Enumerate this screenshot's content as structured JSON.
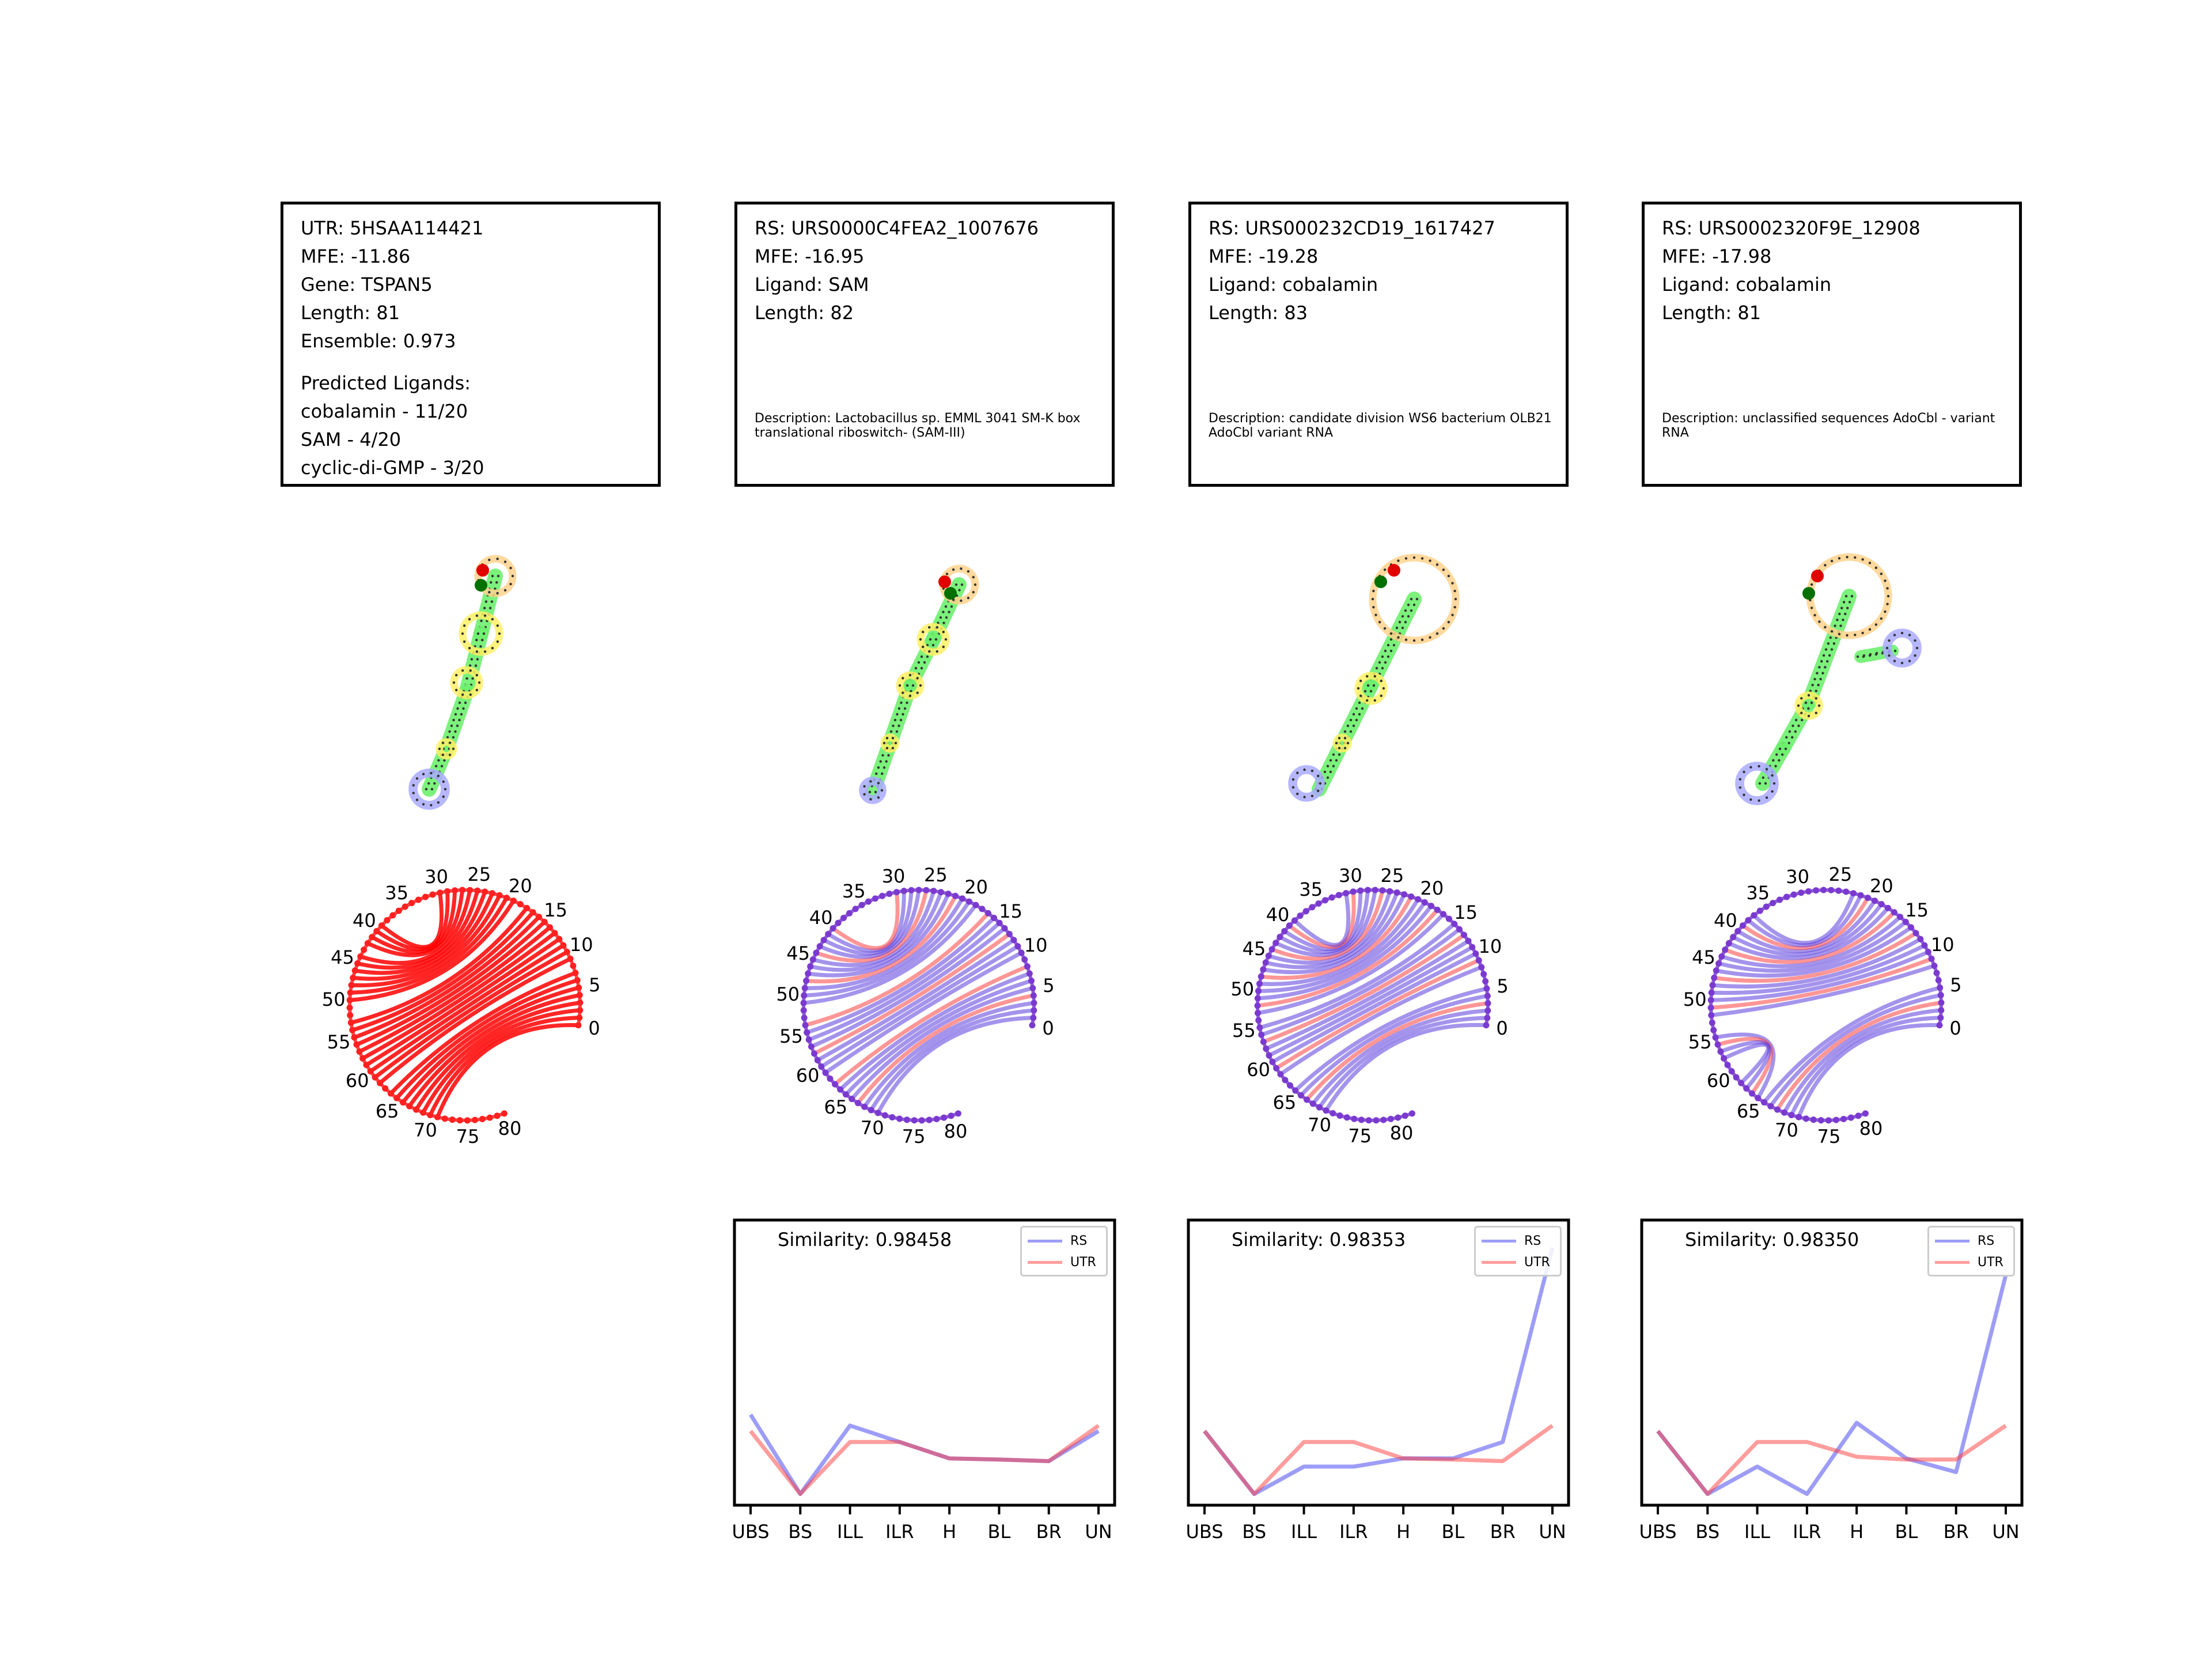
{
  "colors": {
    "rs": "#0000ff",
    "utr": "#ff0000",
    "stem": "#6ef06e",
    "hairpin": "#ffd28c",
    "interior": "#fff066",
    "exterior": "#aaaaff"
  },
  "panels": [
    {
      "lines": [
        "UTR: 5HSAA114421",
        "MFE: -11.86",
        "Gene: TSPAN5",
        "Length: 81",
        "Ensemble: 0.973",
        "Predicted Ligands:",
        "cobalamin - 11/20",
        "SAM - 4/20",
        "cyclic-di-GMP - 3/20"
      ],
      "description": ""
    },
    {
      "lines": [
        "RS: URS0000C4FEA2_1007676",
        "MFE: -16.95",
        "Ligand: SAM",
        "Length: 82"
      ],
      "description": "Description: Lactobacillus sp. EMML 3041 SM-K box translational riboswitch- (SAM-III)"
    },
    {
      "lines": [
        "RS: URS000232CD19_1617427",
        "MFE: -19.28",
        "Ligand: cobalamin",
        "Length: 83"
      ],
      "description": "Description: candidate division WS6 bacterium OLB21 AdoCbl variant RNA"
    },
    {
      "lines": [
        "RS: URS0002320F9E_12908",
        "MFE: -17.98",
        "Ligand: cobalamin",
        "Length: 81"
      ],
      "description": "Description: unclassified sequences AdoCbl - variant RNA"
    }
  ],
  "arc_diagrams": [
    {
      "length": 81,
      "labels": [
        "0",
        "5",
        "10",
        "15",
        "20",
        "25",
        "30",
        "35",
        "40",
        "45",
        "50",
        "55",
        "60",
        "65",
        "70",
        "75",
        "80"
      ],
      "pairs": [
        [
          0,
          71
        ],
        [
          1,
          70
        ],
        [
          2,
          69
        ],
        [
          3,
          68
        ],
        [
          4,
          67
        ],
        [
          5,
          66
        ],
        [
          6,
          65
        ],
        [
          7,
          64
        ],
        [
          9,
          62
        ],
        [
          10,
          61
        ],
        [
          11,
          60
        ],
        [
          12,
          59
        ],
        [
          13,
          58
        ],
        [
          14,
          57
        ],
        [
          15,
          56
        ],
        [
          16,
          55
        ],
        [
          17,
          54
        ],
        [
          18,
          53
        ],
        [
          20,
          50
        ],
        [
          21,
          49
        ],
        [
          22,
          48
        ],
        [
          23,
          47
        ],
        [
          24,
          46
        ],
        [
          25,
          45
        ],
        [
          26,
          44
        ],
        [
          27,
          42
        ],
        [
          28,
          41
        ],
        [
          29,
          40
        ],
        [
          30,
          39
        ]
      ]
    },
    {
      "length": 82,
      "labels": [
        "0",
        "5",
        "10",
        "15",
        "20",
        "25",
        "30",
        "35",
        "40",
        "45",
        "50",
        "55",
        "60",
        "65",
        "70",
        "75",
        "80"
      ],
      "pairs": [
        [
          1,
          70
        ],
        [
          2,
          69
        ],
        [
          3,
          68
        ],
        [
          4,
          67
        ],
        [
          5,
          66
        ],
        [
          6,
          65
        ],
        [
          7,
          64
        ],
        [
          8,
          63
        ],
        [
          10,
          61
        ],
        [
          11,
          60
        ],
        [
          12,
          59
        ],
        [
          13,
          58
        ],
        [
          14,
          57
        ],
        [
          15,
          56
        ],
        [
          16,
          55
        ],
        [
          17,
          54
        ],
        [
          19,
          51
        ],
        [
          20,
          50
        ],
        [
          21,
          49
        ],
        [
          22,
          48
        ],
        [
          23,
          47
        ],
        [
          24,
          46
        ],
        [
          25,
          45
        ],
        [
          26,
          44
        ],
        [
          27,
          43
        ],
        [
          28,
          42
        ],
        [
          29,
          41
        ],
        [
          30,
          40
        ]
      ]
    },
    {
      "length": 83,
      "labels": [
        "0",
        "5",
        "10",
        "15",
        "20",
        "25",
        "30",
        "35",
        "40",
        "45",
        "50",
        "55",
        "60",
        "65",
        "70",
        "75",
        "80"
      ],
      "pairs": [
        [
          0,
          70
        ],
        [
          1,
          69
        ],
        [
          2,
          68
        ],
        [
          3,
          67
        ],
        [
          4,
          66
        ],
        [
          5,
          65
        ],
        [
          8,
          62
        ],
        [
          9,
          61
        ],
        [
          10,
          60
        ],
        [
          11,
          59
        ],
        [
          12,
          58
        ],
        [
          13,
          57
        ],
        [
          14,
          56
        ],
        [
          15,
          55
        ],
        [
          17,
          53
        ],
        [
          18,
          52
        ],
        [
          19,
          51
        ],
        [
          20,
          50
        ],
        [
          21,
          49
        ],
        [
          22,
          48
        ],
        [
          23,
          47
        ],
        [
          24,
          46
        ],
        [
          25,
          45
        ],
        [
          26,
          44
        ],
        [
          27,
          43
        ],
        [
          28,
          42
        ],
        [
          29,
          41
        ],
        [
          30,
          40
        ],
        [
          31,
          39
        ]
      ]
    },
    {
      "length": 81,
      "labels": [
        "0",
        "5",
        "10",
        "15",
        "20",
        "25",
        "30",
        "35",
        "40",
        "45",
        "50",
        "55",
        "60",
        "65",
        "70",
        "75",
        "80"
      ],
      "pairs": [
        [
          0,
          71
        ],
        [
          1,
          70
        ],
        [
          2,
          69
        ],
        [
          3,
          68
        ],
        [
          4,
          67
        ],
        [
          5,
          66
        ],
        [
          8,
          52
        ],
        [
          9,
          51
        ],
        [
          10,
          50
        ],
        [
          11,
          49
        ],
        [
          12,
          48
        ],
        [
          13,
          47
        ],
        [
          14,
          46
        ],
        [
          15,
          45
        ],
        [
          16,
          44
        ],
        [
          17,
          43
        ],
        [
          18,
          42
        ],
        [
          19,
          41
        ],
        [
          20,
          40
        ],
        [
          21,
          39
        ],
        [
          22,
          38
        ],
        [
          23,
          37
        ],
        [
          55,
          65
        ],
        [
          56,
          64
        ],
        [
          57,
          63
        ],
        [
          58,
          62
        ]
      ]
    }
  ],
  "chart_data": [
    {
      "type": "line",
      "title": "Similarity: 0.98458",
      "categories": [
        "UBS",
        "BS",
        "ILL",
        "ILR",
        "H",
        "BL",
        "BR",
        "UN"
      ],
      "ylim": [
        0,
        0.5
      ],
      "series": [
        {
          "name": "RS",
          "values": [
            0.155,
            0.01,
            0.135,
            0.105,
            0.075,
            0.073,
            0.07,
            0.125
          ]
        },
        {
          "name": "UTR",
          "values": [
            0.125,
            0.01,
            0.105,
            0.105,
            0.075,
            0.073,
            0.07,
            0.135
          ]
        }
      ]
    },
    {
      "type": "line",
      "title": "Similarity: 0.98353",
      "categories": [
        "UBS",
        "BS",
        "ILL",
        "ILR",
        "H",
        "BL",
        "BR",
        "UN"
      ],
      "ylim": [
        0,
        0.5
      ],
      "series": [
        {
          "name": "RS",
          "values": [
            0.125,
            0.01,
            0.06,
            0.06,
            0.075,
            0.075,
            0.105,
            0.46
          ]
        },
        {
          "name": "UTR",
          "values": [
            0.125,
            0.01,
            0.105,
            0.105,
            0.075,
            0.073,
            0.07,
            0.135
          ]
        }
      ]
    },
    {
      "type": "line",
      "title": "Similarity: 0.98350",
      "categories": [
        "UBS",
        "BS",
        "ILL",
        "ILR",
        "H",
        "BL",
        "BR",
        "UN"
      ],
      "ylim": [
        0,
        0.5
      ],
      "series": [
        {
          "name": "RS",
          "values": [
            0.125,
            0.01,
            0.06,
            0.01,
            0.14,
            0.075,
            0.05,
            0.41
          ]
        },
        {
          "name": "UTR",
          "values": [
            0.125,
            0.01,
            0.105,
            0.105,
            0.078,
            0.073,
            0.073,
            0.135
          ]
        }
      ]
    }
  ],
  "legend_labels": {
    "rs": "RS",
    "utr": "UTR"
  }
}
